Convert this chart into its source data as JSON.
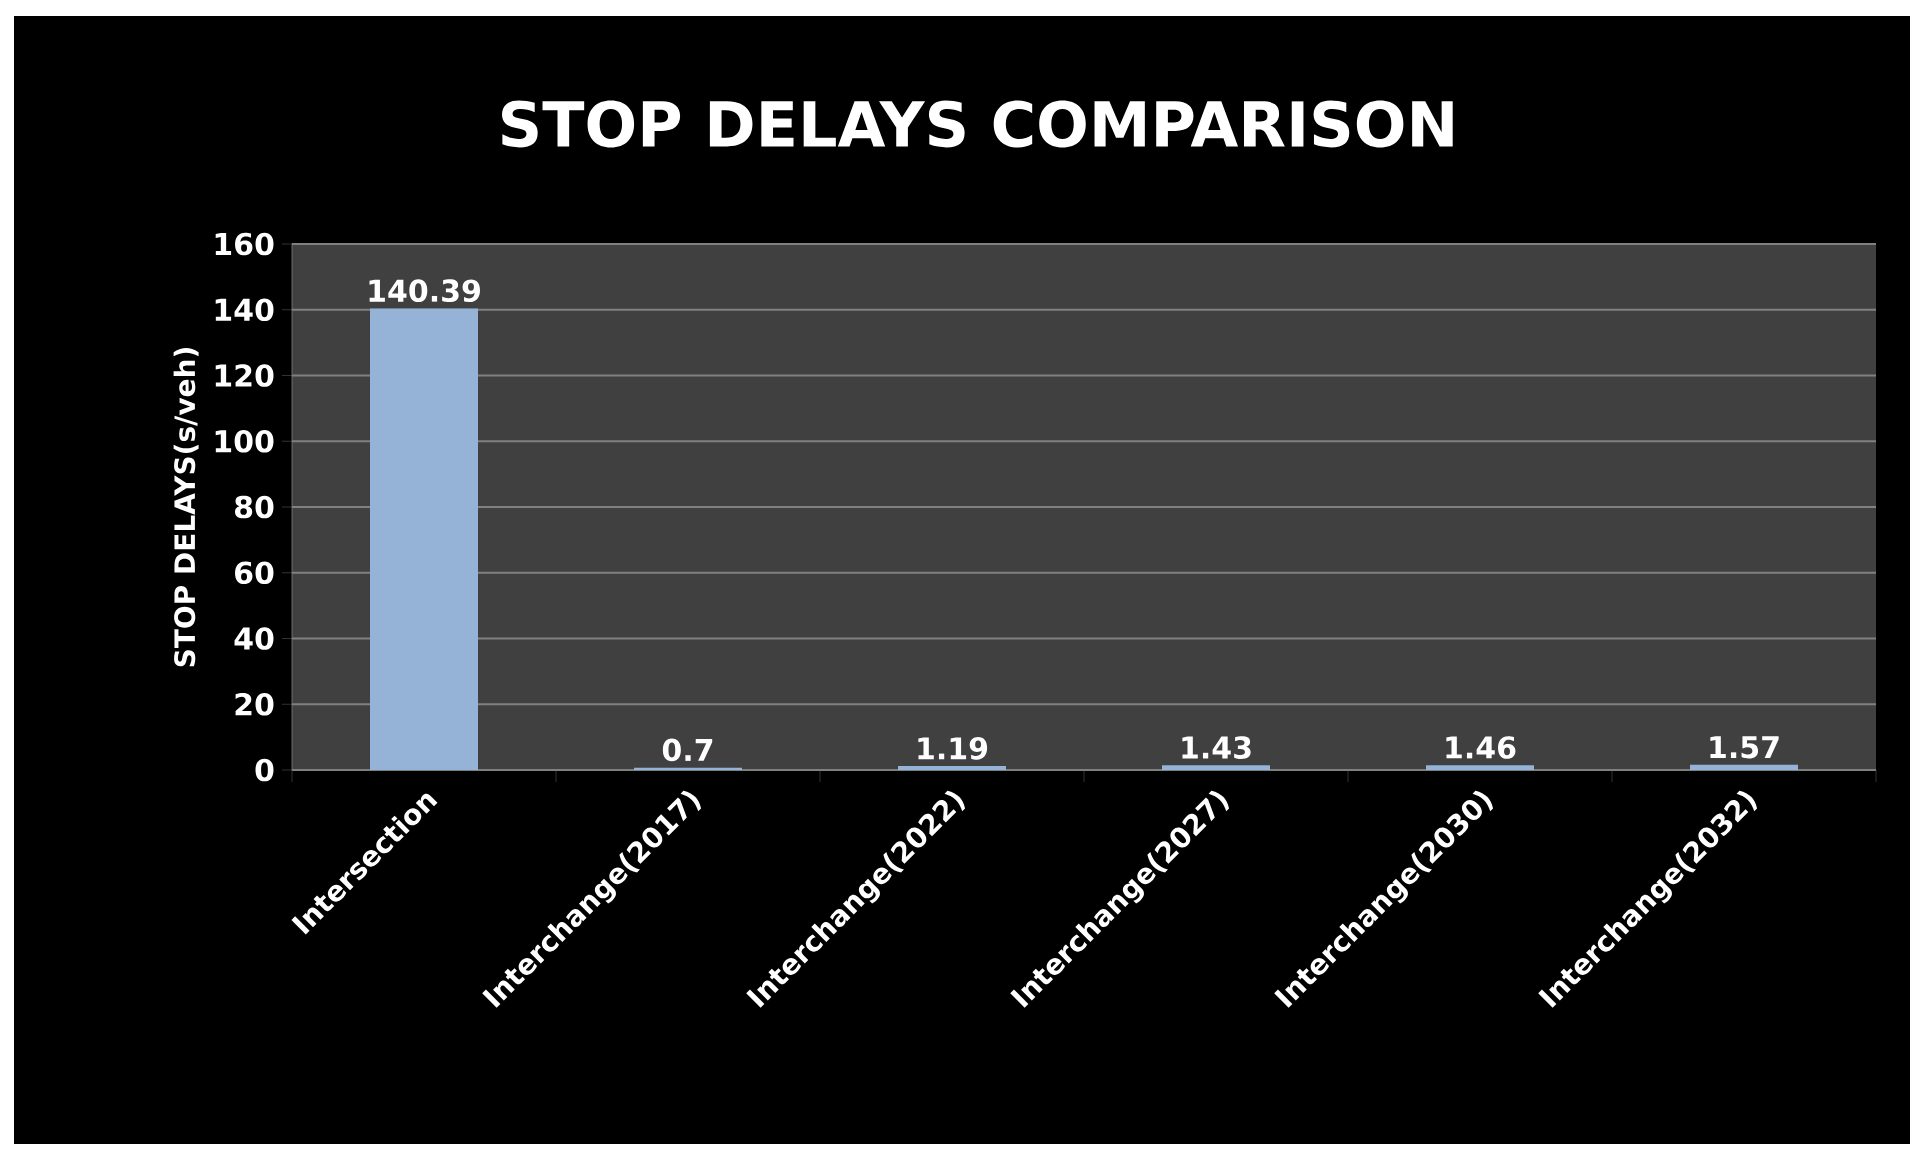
{
  "chart_data": {
    "type": "bar",
    "title": "STOP DELAYS COMPARISON",
    "ylabel": "STOP DELAYS(s/veh)",
    "categories": [
      "Intersection",
      "Interchange(2017)",
      "Interchange(2022)",
      "Interchange(2027)",
      "Interchange(2030)",
      "Interchange(2032)"
    ],
    "values": [
      140.39,
      0.7,
      1.19,
      1.43,
      1.46,
      1.57
    ],
    "value_labels": [
      "140.39",
      "0.7",
      "1.19",
      "1.43",
      "1.46",
      "1.57"
    ],
    "color": "#95b3d7",
    "ylim": [
      0,
      160
    ],
    "yticks": [
      0,
      20,
      40,
      60,
      80,
      100,
      120,
      140,
      160
    ],
    "grid": "y"
  }
}
